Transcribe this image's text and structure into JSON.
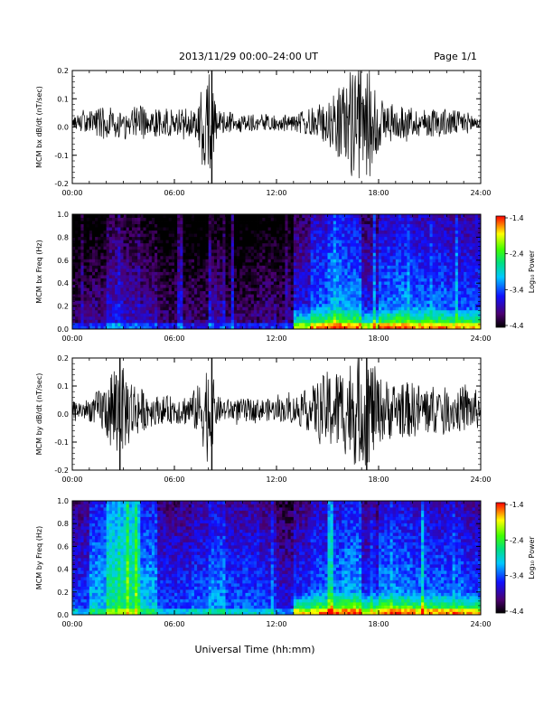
{
  "header": {
    "title": "2013/11/29  00:00–24:00 UT",
    "page": "Page 1/1"
  },
  "xlabel": "Universal Time (hh:mm)",
  "colors": {
    "trace": "#000000",
    "background": "#ffffff"
  },
  "chart_data": [
    {
      "type": "line",
      "ylabel": "MCM bx dB/dt (nT/sec)",
      "xlim": [
        0,
        24
      ],
      "ylim": [
        -0.2,
        0.2
      ],
      "x_tick_labels": [
        "00:00",
        "06:00",
        "12:00",
        "18:00",
        "24:00"
      ],
      "y_ticks": [
        -0.2,
        -0.1,
        0.0,
        0.1,
        0.2
      ],
      "y_tick_labels": [
        "-0.2",
        "-0.1",
        "0.0",
        "0.1",
        "0.2"
      ],
      "series": [
        {
          "x_hours": [
            0,
            1,
            2,
            3,
            4,
            5,
            6,
            7,
            7.5,
            8,
            8.5,
            9,
            10,
            11,
            12,
            13,
            14,
            15,
            16,
            16.5,
            17,
            17.5,
            18,
            19,
            20,
            21,
            22,
            23,
            24
          ],
          "amplitude": [
            0.02,
            0.04,
            0.06,
            0.05,
            0.06,
            0.05,
            0.05,
            0.05,
            0.1,
            0.2,
            0.05,
            0.04,
            0.03,
            0.03,
            0.03,
            0.03,
            0.05,
            0.08,
            0.15,
            0.2,
            0.2,
            0.2,
            0.1,
            0.06,
            0.05,
            0.05,
            0.05,
            0.04,
            0.03
          ]
        }
      ]
    },
    {
      "type": "heatmap",
      "ylabel": "MCM bx Freq (Hz)",
      "colorbar_label": "Log₁₀ Power",
      "colorbar_ticks": [
        "-1.4",
        "-2.4",
        "-3.4",
        "-4.4"
      ],
      "clim": [
        -4.4,
        -1.4
      ],
      "xlim": [
        0,
        24
      ],
      "ylim": [
        0,
        1
      ],
      "x_tick_labels": [
        "00:00",
        "06:00",
        "12:00",
        "18:00",
        "24:00"
      ],
      "y_tick_labels": [
        "0.0",
        "0.2",
        "0.4",
        "0.6",
        "0.8",
        "1.0"
      ],
      "hour_level": [
        -4.0,
        -3.9,
        -3.6,
        -3.7,
        -3.8,
        -4.0,
        -4.0,
        -4.0,
        -3.8,
        -4.0,
        -4.0,
        -3.9,
        -4.0,
        -3.5,
        -3.2,
        -3.0,
        -3.1,
        -3.5,
        -3.2,
        -3.1,
        -3.2,
        -3.2,
        -3.3,
        -3.3
      ]
    },
    {
      "type": "line",
      "ylabel": "MCM by dB/dt (nT/sec)",
      "xlim": [
        0,
        24
      ],
      "ylim": [
        -0.2,
        0.2
      ],
      "x_tick_labels": [
        "00:00",
        "06:00",
        "12:00",
        "18:00",
        "24:00"
      ],
      "y_ticks": [
        -0.2,
        -0.1,
        0.0,
        0.1,
        0.2
      ],
      "y_tick_labels": [
        "-0.2",
        "-0.1",
        "0.0",
        "0.1",
        "0.2"
      ],
      "series": [
        {
          "x_hours": [
            0,
            1,
            2,
            2.5,
            3,
            3.5,
            4,
            5,
            6,
            7,
            7.5,
            8,
            8.5,
            9,
            10,
            11,
            12,
            13,
            14,
            15,
            16,
            16.5,
            17,
            17.5,
            18,
            19,
            20,
            21,
            22,
            23,
            24
          ],
          "amplitude": [
            0.03,
            0.04,
            0.1,
            0.2,
            0.15,
            0.12,
            0.08,
            0.05,
            0.05,
            0.06,
            0.1,
            0.2,
            0.05,
            0.04,
            0.04,
            0.04,
            0.04,
            0.05,
            0.08,
            0.14,
            0.16,
            0.2,
            0.2,
            0.2,
            0.12,
            0.1,
            0.1,
            0.09,
            0.08,
            0.08,
            0.07
          ]
        }
      ]
    },
    {
      "type": "heatmap",
      "ylabel": "MCM by Freq (Hz)",
      "colorbar_label": "Log₁₀ Power",
      "colorbar_ticks": [
        "-1.4",
        "-2.4",
        "-3.4",
        "-4.4"
      ],
      "clim": [
        -4.4,
        -1.4
      ],
      "xlim": [
        0,
        24
      ],
      "ylim": [
        0,
        1
      ],
      "x_tick_labels": [
        "00:00",
        "06:00",
        "12:00",
        "18:00",
        "24:00"
      ],
      "y_tick_labels": [
        "0.0",
        "0.2",
        "0.4",
        "0.6",
        "0.8",
        "1.0"
      ],
      "hour_level": [
        -3.4,
        -3.0,
        -2.6,
        -2.5,
        -3.0,
        -3.4,
        -3.4,
        -3.3,
        -3.1,
        -3.3,
        -3.3,
        -3.4,
        -3.6,
        -3.4,
        -3.2,
        -3.1,
        -3.0,
        -3.4,
        -3.1,
        -3.1,
        -3.2,
        -3.2,
        -3.2,
        -3.3
      ]
    }
  ]
}
